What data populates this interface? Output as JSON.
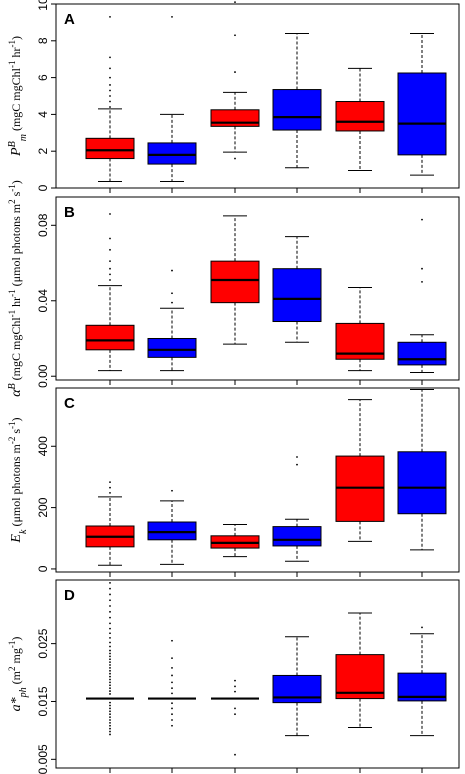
{
  "colors": {
    "red": "#ff0000",
    "blue": "#0000ff"
  },
  "chart_data": [
    {
      "type": "box",
      "panel": "A",
      "ylabel": "P^B_m (mgC mgChl^-1 hr^-1)",
      "ylabel_parts": {
        "main": "P",
        "sup": "B",
        "sub": "m",
        "rest": " (mgC mgChl",
        "sup2": "-1",
        "rest2": " hr",
        "sup3": "-1",
        "rest3": ")"
      },
      "ylim": [
        0,
        10
      ],
      "yticks": [
        0,
        2,
        4,
        6,
        8,
        10
      ],
      "ytick_labels": [
        "0",
        "2",
        "4",
        "6",
        "8",
        "10"
      ],
      "boxes": [
        {
          "color": "red",
          "whislo": 0.35,
          "q1": 1.6,
          "med": 2.05,
          "q3": 2.7,
          "whishi": 4.3,
          "fliers": [
            4.4,
            4.7,
            5.0,
            5.3,
            5.6,
            6.0,
            6.5,
            7.1,
            9.3
          ]
        },
        {
          "color": "blue",
          "whislo": 0.35,
          "q1": 1.3,
          "med": 1.8,
          "q3": 2.45,
          "whishi": 4.0,
          "fliers": [
            9.3
          ]
        },
        {
          "color": "red",
          "whislo": 1.95,
          "q1": 3.35,
          "med": 3.55,
          "q3": 4.25,
          "whishi": 5.2,
          "fliers": [
            1.6,
            6.3,
            8.3,
            10.1
          ]
        },
        {
          "color": "blue",
          "whislo": 1.1,
          "q1": 3.15,
          "med": 3.85,
          "q3": 5.35,
          "whishi": 8.4,
          "fliers": []
        },
        {
          "color": "red",
          "whislo": 0.95,
          "q1": 3.1,
          "med": 3.6,
          "q3": 4.7,
          "whishi": 6.5,
          "fliers": []
        },
        {
          "color": "blue",
          "whislo": 0.7,
          "q1": 1.8,
          "med": 3.5,
          "q3": 6.25,
          "whishi": 8.4,
          "fliers": []
        }
      ]
    },
    {
      "type": "box",
      "panel": "B",
      "ylabel": "α^B (mgC mgChl^-1 hr^-1 (μmol photons m^2 s^-1)^-1)",
      "ylabel_parts": {
        "main": "α",
        "sup": "B",
        "rest": " (mgC mgChl",
        "sup2": "-1",
        "rest2": " hr",
        "sup3": "-1",
        "rest3": " (μmol photons m",
        "sup4": "2",
        "rest4": " s",
        "sup5": "-1",
        "rest5": ")"
      },
      "ylim": [
        -0.002,
        0.095
      ],
      "yticks": [
        0.0,
        0.04,
        0.08
      ],
      "ytick_labels": [
        "0.00",
        "0.04",
        "0.08"
      ],
      "boxes": [
        {
          "color": "red",
          "whislo": 0.003,
          "q1": 0.014,
          "med": 0.019,
          "q3": 0.027,
          "whishi": 0.048,
          "fliers": [
            0.051,
            0.054,
            0.057,
            0.061,
            0.067,
            0.073,
            0.086
          ]
        },
        {
          "color": "blue",
          "whislo": 0.003,
          "q1": 0.01,
          "med": 0.014,
          "q3": 0.02,
          "whishi": 0.036,
          "fliers": [
            0.039,
            0.044,
            0.056
          ]
        },
        {
          "color": "red",
          "whislo": 0.017,
          "q1": 0.039,
          "med": 0.051,
          "q3": 0.061,
          "whishi": 0.085,
          "fliers": []
        },
        {
          "color": "blue",
          "whislo": 0.018,
          "q1": 0.029,
          "med": 0.041,
          "q3": 0.057,
          "whishi": 0.074,
          "fliers": []
        },
        {
          "color": "red",
          "whislo": 0.003,
          "q1": 0.009,
          "med": 0.012,
          "q3": 0.028,
          "whishi": 0.047,
          "fliers": []
        },
        {
          "color": "blue",
          "whislo": 0.002,
          "q1": 0.006,
          "med": 0.009,
          "q3": 0.018,
          "whishi": 0.022,
          "fliers": [
            0.05,
            0.057,
            0.083
          ]
        }
      ]
    },
    {
      "type": "box",
      "panel": "C",
      "ylabel": "E_k (μmol photons m^-2 s^-1)",
      "ylabel_parts": {
        "main": "E",
        "sub": "k",
        "rest": " (μmol photons m",
        "sup2": "-2",
        "rest2": " s",
        "sup3": "-1",
        "rest3": ")"
      },
      "ylim": [
        -10,
        590
      ],
      "yticks": [
        0,
        200,
        400
      ],
      "ytick_labels": [
        "0",
        "200",
        "400"
      ],
      "boxes": [
        {
          "color": "red",
          "whislo": 12,
          "q1": 72,
          "med": 105,
          "q3": 140,
          "whishi": 235,
          "fliers": [
            248,
            265,
            283
          ]
        },
        {
          "color": "blue",
          "whislo": 15,
          "q1": 95,
          "med": 120,
          "q3": 153,
          "whishi": 222,
          "fliers": [
            255
          ]
        },
        {
          "color": "red",
          "whislo": 40,
          "q1": 68,
          "med": 85,
          "q3": 108,
          "whishi": 145,
          "fliers": []
        },
        {
          "color": "blue",
          "whislo": 25,
          "q1": 75,
          "med": 95,
          "q3": 138,
          "whishi": 162,
          "fliers": [
            340,
            365
          ]
        },
        {
          "color": "red",
          "whislo": 90,
          "q1": 155,
          "med": 265,
          "q3": 368,
          "whishi": 552,
          "fliers": []
        },
        {
          "color": "blue",
          "whislo": 62,
          "q1": 180,
          "med": 265,
          "q3": 382,
          "whishi": 585,
          "fliers": []
        }
      ]
    },
    {
      "type": "box",
      "panel": "D",
      "ylabel": "a*ph (m^2 mg^-1)",
      "ylabel_parts": {
        "main": "a*",
        "sub": "ph",
        "rest": " (m",
        "sup2": "2",
        "rest2": " mg",
        "sup3": "-1",
        "rest3": ")"
      },
      "ylim": [
        0.0035,
        0.036
      ],
      "yticks": [
        0.005,
        0.015,
        0.025
      ],
      "ytick_labels": [
        "0.005",
        "0.015",
        "0.025"
      ],
      "boxes": [
        {
          "color": "red",
          "whislo": 0.0155,
          "q1": 0.0155,
          "med": 0.0155,
          "q3": 0.0155,
          "whishi": 0.0155,
          "fliers": [
            0.0093,
            0.0098,
            0.0103,
            0.0108,
            0.0113,
            0.0118,
            0.0123,
            0.0128,
            0.0133,
            0.0138,
            0.0143,
            0.0148,
            0.0163,
            0.0168,
            0.0173,
            0.0178,
            0.0183,
            0.0188,
            0.0193,
            0.0198,
            0.0203,
            0.0208,
            0.0213,
            0.0218,
            0.0223,
            0.0228,
            0.0233,
            0.0238,
            0.0245,
            0.0252,
            0.026,
            0.0268,
            0.0276,
            0.0285,
            0.0295,
            0.0305,
            0.0315,
            0.0325,
            0.0335,
            0.0345,
            0.0355
          ]
        },
        {
          "color": "blue",
          "whislo": 0.0155,
          "q1": 0.0155,
          "med": 0.0155,
          "q3": 0.0155,
          "whishi": 0.0155,
          "fliers": [
            0.0108,
            0.0118,
            0.0128,
            0.0138,
            0.0147,
            0.0164,
            0.0173,
            0.0183,
            0.0195,
            0.0208,
            0.0225,
            0.0255
          ]
        },
        {
          "color": "red",
          "whislo": 0.0155,
          "q1": 0.0155,
          "med": 0.0155,
          "q3": 0.0155,
          "whishi": 0.0155,
          "fliers": [
            0.0058,
            0.0128,
            0.0138,
            0.0167,
            0.0176,
            0.0186
          ]
        },
        {
          "color": "blue",
          "whislo": 0.0091,
          "q1": 0.0148,
          "med": 0.0157,
          "q3": 0.0195,
          "whishi": 0.0262,
          "fliers": []
        },
        {
          "color": "red",
          "whislo": 0.0105,
          "q1": 0.0155,
          "med": 0.0165,
          "q3": 0.0231,
          "whishi": 0.0303,
          "fliers": []
        },
        {
          "color": "blue",
          "whislo": 0.0091,
          "q1": 0.0151,
          "med": 0.0158,
          "q3": 0.0199,
          "whishi": 0.0267,
          "fliers": [
            0.0278
          ]
        }
      ]
    }
  ]
}
